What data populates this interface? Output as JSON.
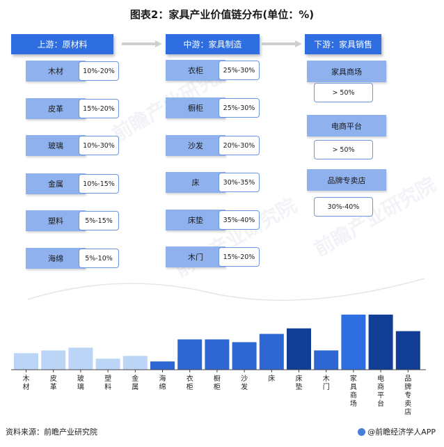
{
  "title": "图表2：家具产业价值链分布(单位：%)",
  "colors": {
    "header": "#2e6ee0",
    "item_box": "#8fb2ee",
    "bar_raw": "#bcd5f6",
    "bar_mfg": "#2e67d4",
    "bar_mfg_dark": "#123d94",
    "bar_sales": "#2d6ee0",
    "bar_sales_light": "#3a7de8"
  },
  "columns": {
    "upstream": {
      "header": "上游：原材料",
      "items": [
        {
          "name": "木材",
          "value": "10%-20%"
        },
        {
          "name": "皮革",
          "value": "15%-20%"
        },
        {
          "name": "玻璃",
          "value": "10%-30%"
        },
        {
          "name": "金属",
          "value": "10%-15%"
        },
        {
          "name": "塑料",
          "value": "5%-15%"
        },
        {
          "name": "海绵",
          "value": "5%-10%"
        }
      ]
    },
    "midstream": {
      "header": "中游：家具制造",
      "items": [
        {
          "name": "衣柜",
          "value": "25%-30%"
        },
        {
          "name": "橱柜",
          "value": "25%-30%"
        },
        {
          "name": "沙发",
          "value": "20%-30%"
        },
        {
          "name": "床",
          "value": "30%-35%"
        },
        {
          "name": "床垫",
          "value": "35%-40%"
        },
        {
          "name": "木门",
          "value": "15%-20%"
        }
      ]
    },
    "downstream": {
      "header": "下游：家具销售",
      "items": [
        {
          "name": "家具商场",
          "value": "> 50%"
        },
        {
          "name": "电商平台",
          "value": "> 50%"
        },
        {
          "name": "品牌专卖店",
          "value": "30%-40%"
        }
      ]
    }
  },
  "chart_data": {
    "type": "bar",
    "categories": [
      "木材",
      "皮革",
      "玻璃",
      "塑料",
      "金属",
      "海绵",
      "衣柜",
      "橱柜",
      "沙发",
      "床",
      "床垫",
      "木门",
      "家具商场",
      "电商平台",
      "品牌专卖店"
    ],
    "values": [
      15,
      17.5,
      20,
      10,
      12.5,
      7.5,
      27.5,
      27.5,
      25,
      32.5,
      37.5,
      17.5,
      50,
      50,
      35
    ],
    "groups": [
      "raw",
      "raw",
      "raw",
      "raw",
      "raw",
      "raw",
      "mfg",
      "mfg",
      "mfg",
      "mfg",
      "mfg",
      "mfg",
      "sales",
      "sales",
      "sales"
    ],
    "bar_colors": [
      "#bcd5f6",
      "#bcd5f6",
      "#bcd5f6",
      "#bcd5f6",
      "#bcd5f6",
      "#2e67d4",
      "#2e67d4",
      "#2e67d4",
      "#2e67d4",
      "#2e67d4",
      "#123d94",
      "#2e67d4",
      "#2d6ee0",
      "#123d94",
      "#123d94"
    ],
    "ylim": [
      0,
      60
    ],
    "grid": false,
    "title": "",
    "xlabel": "",
    "ylabel": ""
  },
  "footer": {
    "source": "资料来源：前瞻产业研究院",
    "brand": "@前瞻经济学人APP"
  },
  "watermark_text": "前瞻产业研究院"
}
